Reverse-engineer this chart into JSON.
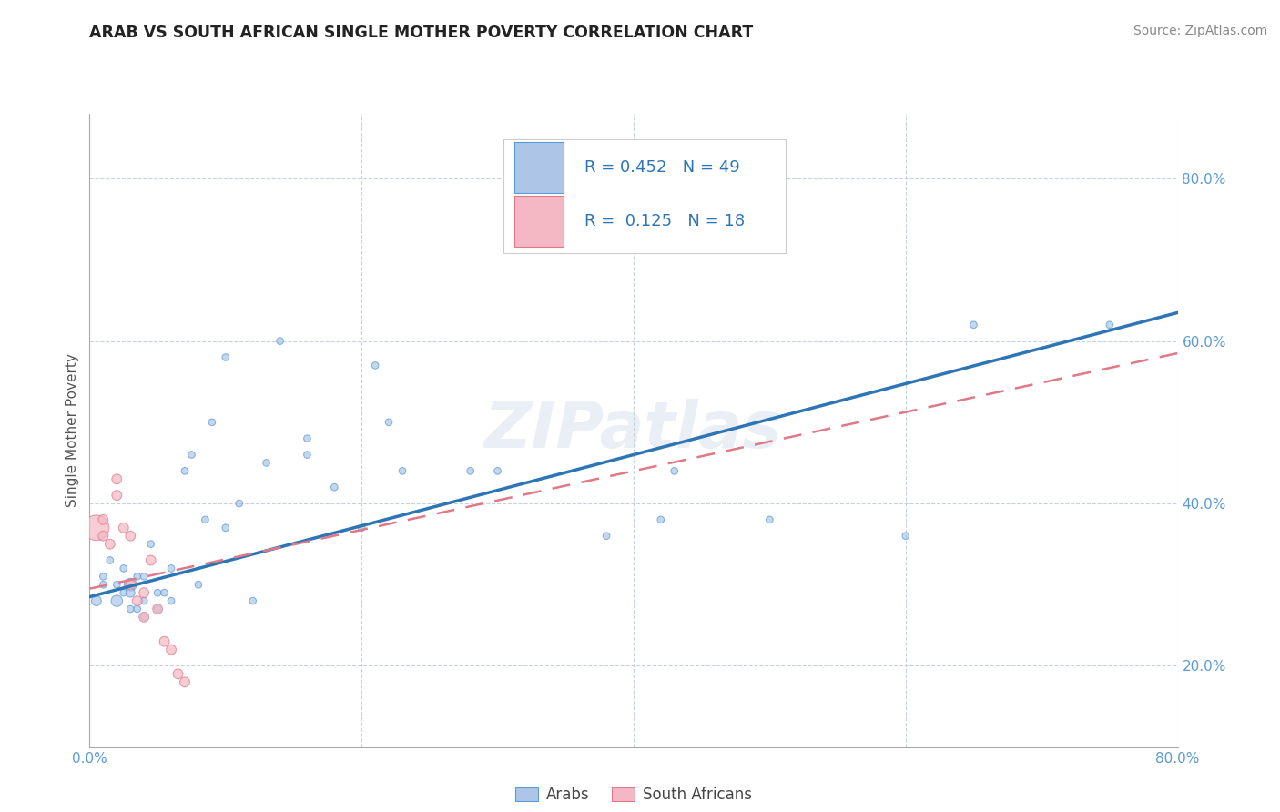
{
  "title": "ARAB VS SOUTH AFRICAN SINGLE MOTHER POVERTY CORRELATION CHART",
  "source": "Source: ZipAtlas.com",
  "ylabel": "Single Mother Poverty",
  "xlim": [
    0.0,
    0.8
  ],
  "ylim": [
    0.1,
    0.88
  ],
  "xticks": [
    0.0,
    0.2,
    0.4,
    0.6,
    0.8
  ],
  "xticklabels": [
    "0.0%",
    "",
    "",
    "",
    "80.0%"
  ],
  "ytick_positions": [
    0.2,
    0.4,
    0.6,
    0.8
  ],
  "ytick_labels": [
    "20.0%",
    "40.0%",
    "60.0%",
    "80.0%"
  ],
  "arab_color": "#adc6e8",
  "arab_edge_color": "#5b9bd5",
  "sa_color": "#f4b8c4",
  "sa_edge_color": "#e07888",
  "arab_line_color": "#2e75b6",
  "sa_line_color": "#e07888",
  "arab_R": 0.452,
  "arab_N": 49,
  "sa_R": 0.125,
  "sa_N": 18,
  "legend_box_color_arab": "#adc6e8",
  "legend_box_color_sa": "#f4b8c4",
  "legend_text_color": "#2e75b6",
  "watermark": "ZIPatlas",
  "arab_line_x0": 0.0,
  "arab_line_y0": 0.285,
  "arab_line_x1": 0.8,
  "arab_line_y1": 0.635,
  "sa_line_x0": 0.0,
  "sa_line_y0": 0.295,
  "sa_line_x1": 0.8,
  "sa_line_y1": 0.585,
  "arab_x": [
    0.005,
    0.01,
    0.01,
    0.015,
    0.02,
    0.02,
    0.025,
    0.025,
    0.03,
    0.03,
    0.03,
    0.035,
    0.035,
    0.04,
    0.04,
    0.04,
    0.045,
    0.05,
    0.05,
    0.055,
    0.06,
    0.06,
    0.07,
    0.075,
    0.08,
    0.085,
    0.09,
    0.1,
    0.1,
    0.11,
    0.12,
    0.13,
    0.14,
    0.16,
    0.16,
    0.18,
    0.2,
    0.21,
    0.22,
    0.23,
    0.28,
    0.3,
    0.38,
    0.42,
    0.43,
    0.5,
    0.6,
    0.65,
    0.75
  ],
  "arab_y": [
    0.28,
    0.31,
    0.3,
    0.33,
    0.3,
    0.28,
    0.32,
    0.29,
    0.3,
    0.27,
    0.29,
    0.31,
    0.27,
    0.28,
    0.31,
    0.26,
    0.35,
    0.29,
    0.27,
    0.29,
    0.32,
    0.28,
    0.44,
    0.46,
    0.3,
    0.38,
    0.5,
    0.58,
    0.37,
    0.4,
    0.28,
    0.45,
    0.6,
    0.48,
    0.46,
    0.42,
    0.37,
    0.57,
    0.5,
    0.44,
    0.44,
    0.44,
    0.36,
    0.38,
    0.44,
    0.38,
    0.36,
    0.62,
    0.62
  ],
  "arab_sizes": [
    60,
    30,
    30,
    30,
    30,
    80,
    30,
    30,
    100,
    30,
    50,
    30,
    30,
    30,
    30,
    30,
    30,
    30,
    30,
    30,
    30,
    30,
    30,
    30,
    30,
    30,
    30,
    30,
    30,
    30,
    30,
    30,
    30,
    30,
    30,
    30,
    30,
    30,
    30,
    30,
    30,
    30,
    30,
    30,
    30,
    30,
    30,
    30,
    30
  ],
  "sa_x": [
    0.005,
    0.01,
    0.01,
    0.015,
    0.02,
    0.02,
    0.025,
    0.03,
    0.03,
    0.035,
    0.04,
    0.04,
    0.045,
    0.05,
    0.055,
    0.06,
    0.065,
    0.07
  ],
  "sa_y": [
    0.37,
    0.36,
    0.38,
    0.35,
    0.41,
    0.43,
    0.37,
    0.36,
    0.3,
    0.28,
    0.26,
    0.29,
    0.33,
    0.27,
    0.23,
    0.22,
    0.19,
    0.18
  ],
  "sa_sizes": [
    400,
    60,
    60,
    60,
    60,
    60,
    60,
    60,
    60,
    60,
    60,
    60,
    60,
    60,
    60,
    60,
    60,
    60
  ]
}
